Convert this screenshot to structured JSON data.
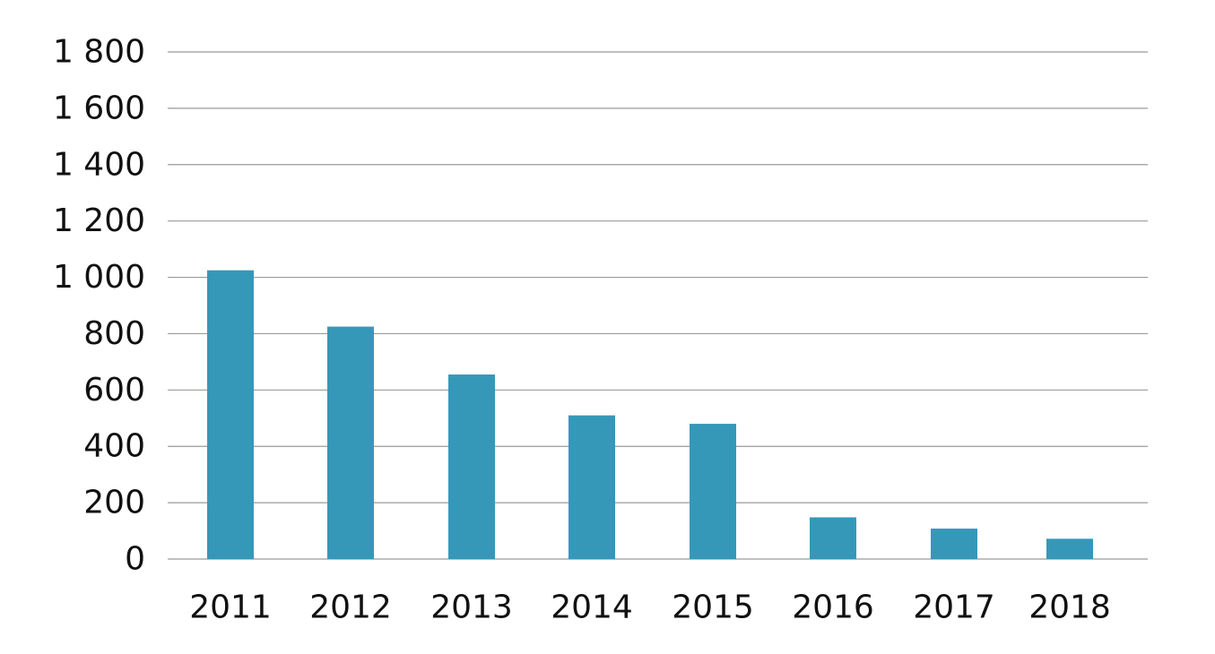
{
  "chart_data": {
    "type": "bar",
    "categories": [
      "2011",
      "2012",
      "2013",
      "2014",
      "2015",
      "2016",
      "2017",
      "2018"
    ],
    "values": [
      1025,
      825,
      655,
      510,
      480,
      148,
      108,
      72
    ],
    "ylim": [
      0,
      1800
    ],
    "yticks": [
      0,
      200,
      400,
      600,
      800,
      1000,
      1200,
      1400,
      1600,
      1800
    ],
    "ytick_labels": [
      "0",
      "200",
      "400",
      "600",
      "800",
      "1 000",
      "1 200",
      "1 400",
      "1 600",
      "1 800"
    ],
    "grid": true,
    "bar_color": "#3598b9"
  }
}
